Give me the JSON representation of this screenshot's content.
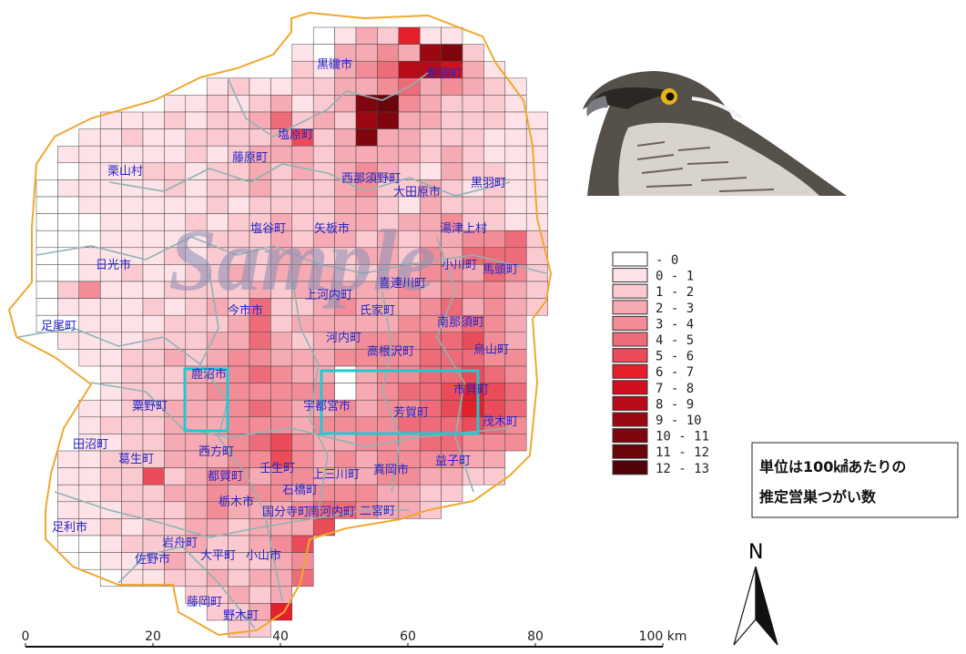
{
  "map": {
    "watermark": "Sample",
    "towns": [
      "黒磯市",
      "那須町",
      "塩原町",
      "藤原町",
      "栗山村",
      "西那須野町",
      "大田原市",
      "黒羽町",
      "塩谷町",
      "矢板市",
      "湯津上村",
      "日光市",
      "小川町",
      "馬頭町",
      "上河内町",
      "喜連川町",
      "氏家町",
      "今市市",
      "南那須町",
      "足尾町",
      "河内町",
      "高根沢町",
      "烏山町",
      "鹿沼市",
      "市貝町",
      "粟野町",
      "宇都宮市",
      "芳賀町",
      "茂木町",
      "田沼町",
      "葛生町",
      "西方町",
      "都賀町",
      "壬生町",
      "上三川町",
      "真岡市",
      "益子町",
      "石橋町",
      "栃木市",
      "国分寺町",
      "南河内町",
      "二宮町",
      "足利市",
      "岩舟町",
      "佐野市",
      "大平町",
      "小山市",
      "藤岡町",
      "野木町"
    ],
    "legend": [
      {
        "label": "- 0",
        "color": "#ffffff"
      },
      {
        "label": "0 - 1",
        "color": "#fde3e7"
      },
      {
        "label": "1 - 2",
        "color": "#fbcad1"
      },
      {
        "label": "2 - 3",
        "color": "#f6abb4"
      },
      {
        "label": "3 - 4",
        "color": "#f28d98"
      },
      {
        "label": "4 - 5",
        "color": "#ee6c7a"
      },
      {
        "label": "5 - 6",
        "color": "#ea4c5a"
      },
      {
        "label": "6 - 7",
        "color": "#e4202d"
      },
      {
        "label": "7 - 8",
        "color": "#d2101d"
      },
      {
        "label": "8 - 9",
        "color": "#b80b17"
      },
      {
        "label": "9 - 10",
        "color": "#9c0812"
      },
      {
        "label": "10 - 11",
        "color": "#80060e"
      },
      {
        "label": "11 - 12",
        "color": "#6a050b"
      },
      {
        "label": "12 - 13",
        "color": "#520308"
      }
    ],
    "cells": [
      [
        null,
        null,
        null,
        null,
        null,
        null,
        null,
        null,
        null,
        null,
        null,
        null,
        null,
        0,
        1,
        3,
        2,
        7,
        1,
        1,
        null,
        null,
        null,
        null
      ],
      [
        null,
        null,
        null,
        null,
        null,
        null,
        null,
        null,
        null,
        null,
        null,
        null,
        1,
        0,
        3,
        3,
        4,
        3,
        10,
        11,
        2,
        null,
        null,
        null
      ],
      [
        null,
        null,
        null,
        null,
        null,
        null,
        null,
        null,
        null,
        null,
        null,
        null,
        2,
        1,
        3,
        4,
        5,
        9,
        9,
        8,
        3,
        1,
        null,
        null
      ],
      [
        null,
        null,
        null,
        null,
        null,
        null,
        null,
        null,
        1,
        2,
        1,
        1,
        2,
        2,
        3,
        3,
        4,
        5,
        3,
        4,
        3,
        2,
        1,
        null
      ],
      [
        null,
        null,
        null,
        null,
        null,
        null,
        1,
        1,
        2,
        1,
        2,
        3,
        1,
        2,
        3,
        11,
        12,
        4,
        3,
        2,
        2,
        2,
        1,
        null
      ],
      [
        null,
        null,
        null,
        1,
        1,
        1,
        2,
        1,
        2,
        2,
        3,
        5,
        2,
        3,
        2,
        10,
        11,
        3,
        3,
        2,
        2,
        2,
        1,
        1
      ],
      [
        null,
        null,
        1,
        1,
        2,
        1,
        1,
        2,
        2,
        2,
        2,
        3,
        6,
        2,
        3,
        11,
        3,
        3,
        2,
        2,
        2,
        1,
        1,
        1
      ],
      [
        null,
        1,
        1,
        1,
        1,
        1,
        1,
        2,
        1,
        2,
        3,
        3,
        3,
        2,
        3,
        3,
        3,
        3,
        2,
        3,
        2,
        1,
        1,
        1
      ],
      [
        null,
        0,
        1,
        1,
        1,
        2,
        2,
        1,
        2,
        2,
        3,
        2,
        3,
        2,
        3,
        4,
        3,
        2,
        1,
        3,
        2,
        2,
        1,
        1
      ],
      [
        0,
        1,
        1,
        1,
        1,
        1,
        2,
        1,
        2,
        2,
        3,
        2,
        2,
        2,
        3,
        4,
        2,
        2,
        3,
        2,
        1,
        2,
        1,
        1
      ],
      [
        0,
        0,
        1,
        1,
        1,
        1,
        1,
        1,
        2,
        1,
        2,
        2,
        2,
        2,
        3,
        3,
        2,
        1,
        3,
        2,
        2,
        2,
        1,
        1
      ],
      [
        0,
        0,
        0,
        1,
        1,
        1,
        1,
        2,
        1,
        2,
        2,
        3,
        2,
        2,
        3,
        3,
        2,
        3,
        3,
        4,
        2,
        2,
        1,
        1
      ],
      [
        0,
        0,
        0,
        1,
        1,
        1,
        1,
        1,
        2,
        2,
        2,
        3,
        2,
        3,
        3,
        2,
        3,
        2,
        3,
        3,
        4,
        4,
        5,
        2
      ],
      [
        0,
        0,
        1,
        1,
        1,
        1,
        2,
        1,
        2,
        2,
        2,
        3,
        3,
        2,
        2,
        3,
        3,
        2,
        4,
        3,
        5,
        5,
        5,
        2
      ],
      [
        0,
        0,
        1,
        1,
        2,
        1,
        1,
        2,
        2,
        3,
        2,
        3,
        3,
        3,
        2,
        2,
        3,
        3,
        4,
        4,
        3,
        5,
        4,
        2
      ],
      [
        0,
        2,
        4,
        1,
        1,
        1,
        2,
        2,
        2,
        2,
        3,
        2,
        3,
        3,
        3,
        3,
        3,
        4,
        3,
        4,
        4,
        4,
        3,
        2
      ],
      [
        0,
        1,
        1,
        1,
        1,
        2,
        1,
        2,
        3,
        2,
        5,
        2,
        2,
        3,
        4,
        3,
        3,
        3,
        4,
        5,
        3,
        4,
        3,
        2
      ],
      [
        0,
        0,
        1,
        1,
        1,
        1,
        2,
        2,
        2,
        3,
        5,
        2,
        3,
        3,
        3,
        3,
        3,
        4,
        4,
        4,
        5,
        4,
        3,
        null
      ],
      [
        null,
        1,
        1,
        1,
        1,
        2,
        2,
        2,
        3,
        3,
        5,
        3,
        2,
        3,
        3,
        4,
        4,
        4,
        5,
        5,
        6,
        4,
        3,
        null
      ],
      [
        null,
        null,
        1,
        1,
        2,
        2,
        3,
        2,
        3,
        4,
        4,
        3,
        3,
        3,
        4,
        4,
        4,
        4,
        5,
        5,
        5,
        4,
        4,
        null
      ],
      [
        null,
        null,
        null,
        1,
        2,
        2,
        2,
        3,
        3,
        4,
        5,
        4,
        3,
        3,
        0,
        3,
        4,
        4,
        5,
        5,
        6,
        5,
        4,
        null
      ],
      [
        null,
        null,
        null,
        1,
        2,
        2,
        2,
        3,
        4,
        4,
        4,
        4,
        4,
        4,
        0,
        3,
        4,
        5,
        5,
        6,
        7,
        6,
        5,
        null
      ],
      [
        null,
        null,
        1,
        1,
        2,
        2,
        3,
        3,
        3,
        4,
        5,
        4,
        3,
        3,
        4,
        3,
        4,
        4,
        5,
        6,
        7,
        6,
        5,
        null
      ],
      [
        null,
        null,
        1,
        2,
        2,
        2,
        3,
        3,
        3,
        4,
        4,
        4,
        3,
        4,
        4,
        4,
        4,
        5,
        5,
        5,
        6,
        5,
        4,
        null
      ],
      [
        null,
        null,
        1,
        1,
        2,
        2,
        3,
        3,
        3,
        4,
        5,
        6,
        4,
        3,
        3,
        4,
        4,
        4,
        5,
        5,
        4,
        4,
        4,
        null
      ],
      [
        null,
        1,
        1,
        2,
        2,
        2,
        3,
        3,
        3,
        4,
        4,
        6,
        4,
        3,
        4,
        3,
        4,
        4,
        4,
        4,
        3,
        3,
        null,
        null
      ],
      [
        null,
        1,
        1,
        2,
        2,
        6,
        2,
        3,
        4,
        4,
        3,
        4,
        4,
        3,
        3,
        3,
        4,
        4,
        3,
        3,
        2,
        2,
        null,
        null
      ],
      [
        null,
        1,
        1,
        2,
        2,
        2,
        3,
        3,
        4,
        3,
        4,
        4,
        3,
        4,
        4,
        4,
        3,
        3,
        2,
        2,
        null,
        null,
        null,
        null
      ],
      [
        null,
        1,
        1,
        1,
        2,
        2,
        2,
        3,
        4,
        3,
        3,
        3,
        4,
        5,
        5,
        4,
        3,
        3,
        2,
        null,
        null,
        null,
        null,
        null
      ],
      [
        null,
        1,
        1,
        2,
        1,
        2,
        2,
        3,
        3,
        2,
        3,
        3,
        3,
        6,
        null,
        null,
        null,
        null,
        null,
        null,
        null,
        null,
        null,
        null
      ],
      [
        null,
        0,
        0,
        1,
        2,
        2,
        2,
        3,
        2,
        2,
        3,
        4,
        6,
        null,
        null,
        null,
        null,
        null,
        null,
        null,
        null,
        null,
        null,
        null
      ],
      [
        null,
        null,
        0,
        1,
        1,
        2,
        3,
        2,
        2,
        2,
        2,
        3,
        4,
        null,
        null,
        null,
        null,
        null,
        null,
        null,
        null,
        null,
        null,
        null
      ],
      [
        null,
        null,
        null,
        0,
        1,
        1,
        2,
        2,
        3,
        2,
        3,
        3,
        5,
        null,
        null,
        null,
        null,
        null,
        null,
        null,
        null,
        null,
        null,
        null
      ],
      [
        null,
        null,
        null,
        null,
        null,
        null,
        null,
        2,
        2,
        3,
        2,
        3,
        null,
        null,
        null,
        null,
        null,
        null,
        null,
        null,
        null,
        null,
        null,
        null
      ],
      [
        null,
        null,
        null,
        null,
        null,
        null,
        null,
        null,
        2,
        2,
        3,
        7,
        null,
        null,
        null,
        null,
        null,
        null,
        null,
        null,
        null,
        null,
        null,
        null
      ],
      [
        null,
        null,
        null,
        null,
        null,
        null,
        null,
        null,
        null,
        2,
        2,
        null,
        null,
        null,
        null,
        null,
        null,
        null,
        null,
        null,
        null,
        null,
        null,
        null
      ]
    ],
    "scale": {
      "ticks": [
        0,
        20,
        40,
        60,
        80,
        {
          "value": 100,
          "label": "100 km"
        }
      ]
    },
    "note": [
      "単位は100㎢あたりの",
      "推定営巣つがい数"
    ],
    "north": "N"
  }
}
